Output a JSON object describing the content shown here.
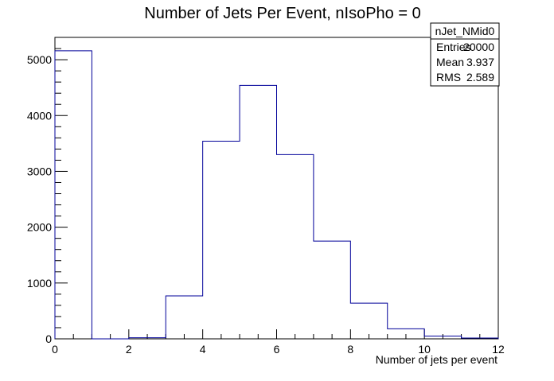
{
  "chart_data": {
    "type": "histogram",
    "title": "Number of Jets Per Event, nIsoPho = 0",
    "xlabel": "Number of jets per event",
    "ylabel": "",
    "xlim": [
      0,
      12
    ],
    "ylim": [
      0,
      5400
    ],
    "x_ticks": [
      0,
      2,
      4,
      6,
      8,
      10,
      12
    ],
    "y_ticks": [
      0,
      1000,
      2000,
      3000,
      4000,
      5000
    ],
    "bin_edges": [
      0,
      1,
      2,
      3,
      4,
      5,
      6,
      7,
      8,
      9,
      10,
      11,
      12
    ],
    "series": [
      {
        "values": [
          5160,
          0,
          20,
          770,
          3540,
          4540,
          3300,
          1750,
          640,
          180,
          50,
          15
        ],
        "color": "#000099"
      }
    ],
    "grid": false,
    "legend": "none",
    "stats_box": {
      "title": "nJet_NMid0",
      "rows": [
        {
          "label": "Entries",
          "value": "20000"
        },
        {
          "label": "Mean",
          "value": "3.937"
        },
        {
          "label": "RMS",
          "value": "2.589"
        }
      ],
      "placement": "top-right"
    }
  }
}
